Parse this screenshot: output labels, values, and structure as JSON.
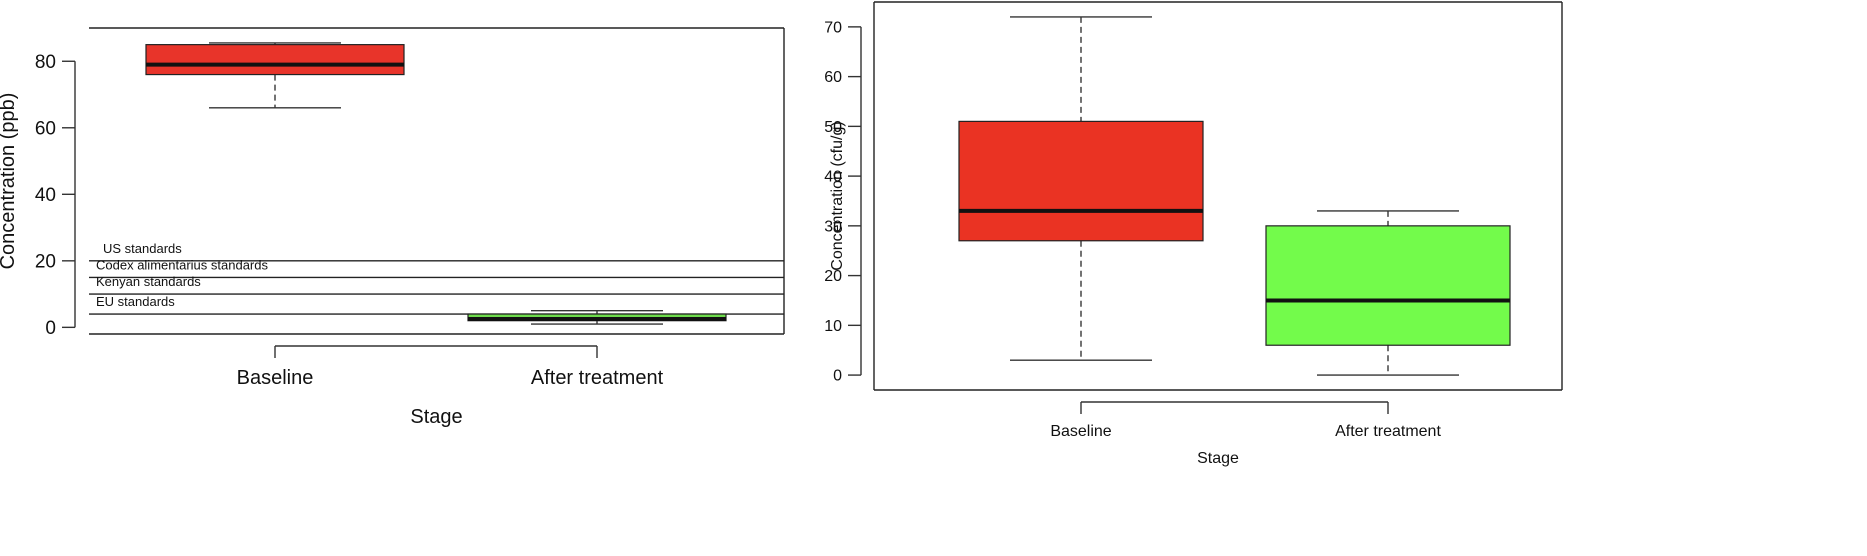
{
  "chart_data": [
    {
      "type": "box",
      "xlabel": "Stage",
      "ylabel": "Concentration (ppb)",
      "ylim": [
        -2,
        90
      ],
      "yticks": [
        0,
        20,
        40,
        60,
        80
      ],
      "categories": [
        "Baseline",
        "After treatment"
      ],
      "boxes": [
        {
          "category": "Baseline",
          "min": 66,
          "q1": 76,
          "median": 79,
          "q3": 85,
          "max": 85.5,
          "color": "#e8342a"
        },
        {
          "category": "After treatment",
          "min": 1,
          "q1": 2,
          "median": 2.5,
          "q3": 4,
          "max": 5,
          "color": "#6edc4c"
        }
      ],
      "reference_lines": [
        {
          "label": "US standards",
          "value": 20
        },
        {
          "label": "Codex alimentarius standards",
          "value": 15
        },
        {
          "label": "Kenyan standards",
          "value": 10
        },
        {
          "label": "EU standards",
          "value": 4
        }
      ]
    },
    {
      "type": "box",
      "xlabel": "Stage",
      "ylabel": "Concentration (cfu/g)",
      "ylim": [
        -3,
        75
      ],
      "yticks": [
        0,
        10,
        20,
        30,
        40,
        50,
        60,
        70
      ],
      "categories": [
        "Baseline",
        "After treatment"
      ],
      "boxes": [
        {
          "category": "Baseline",
          "min": 3,
          "q1": 27,
          "median": 33,
          "q3": 51,
          "max": 72,
          "color": "#ea3323"
        },
        {
          "category": "After treatment",
          "min": 0,
          "q1": 6,
          "median": 15,
          "q3": 30,
          "max": 33,
          "color": "#73fb4b"
        }
      ]
    }
  ]
}
